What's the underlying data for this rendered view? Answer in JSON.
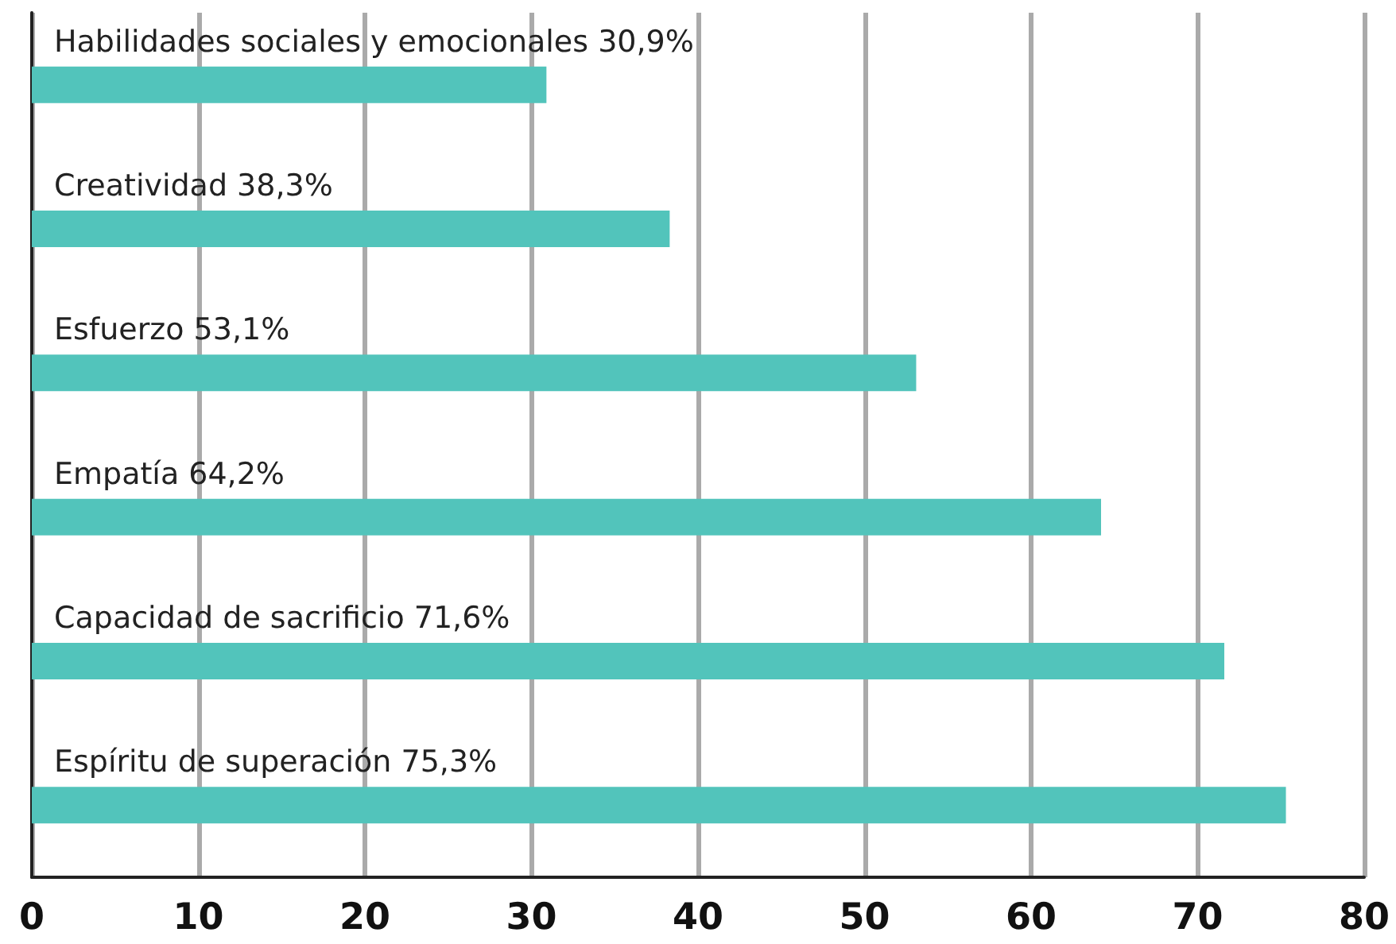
{
  "chart_data": {
    "type": "bar",
    "orientation": "horizontal",
    "categories": [
      "Habilidades sociales y emocionales",
      "Creatividad",
      "Esfuerzo",
      "Empatía",
      "Capacidad de sacrificio",
      "Espíritu de superación"
    ],
    "values": [
      30.9,
      38.3,
      53.1,
      64.2,
      71.6,
      75.3
    ],
    "value_labels": [
      "30,9%",
      "38,3%",
      "53,1%",
      "64,2%",
      "71,6%",
      "75,3%"
    ],
    "color": "#52c4bb",
    "xlim": [
      0,
      80
    ],
    "xticks": [
      0,
      10,
      20,
      30,
      40,
      50,
      60,
      70,
      80
    ],
    "grid": "x"
  }
}
